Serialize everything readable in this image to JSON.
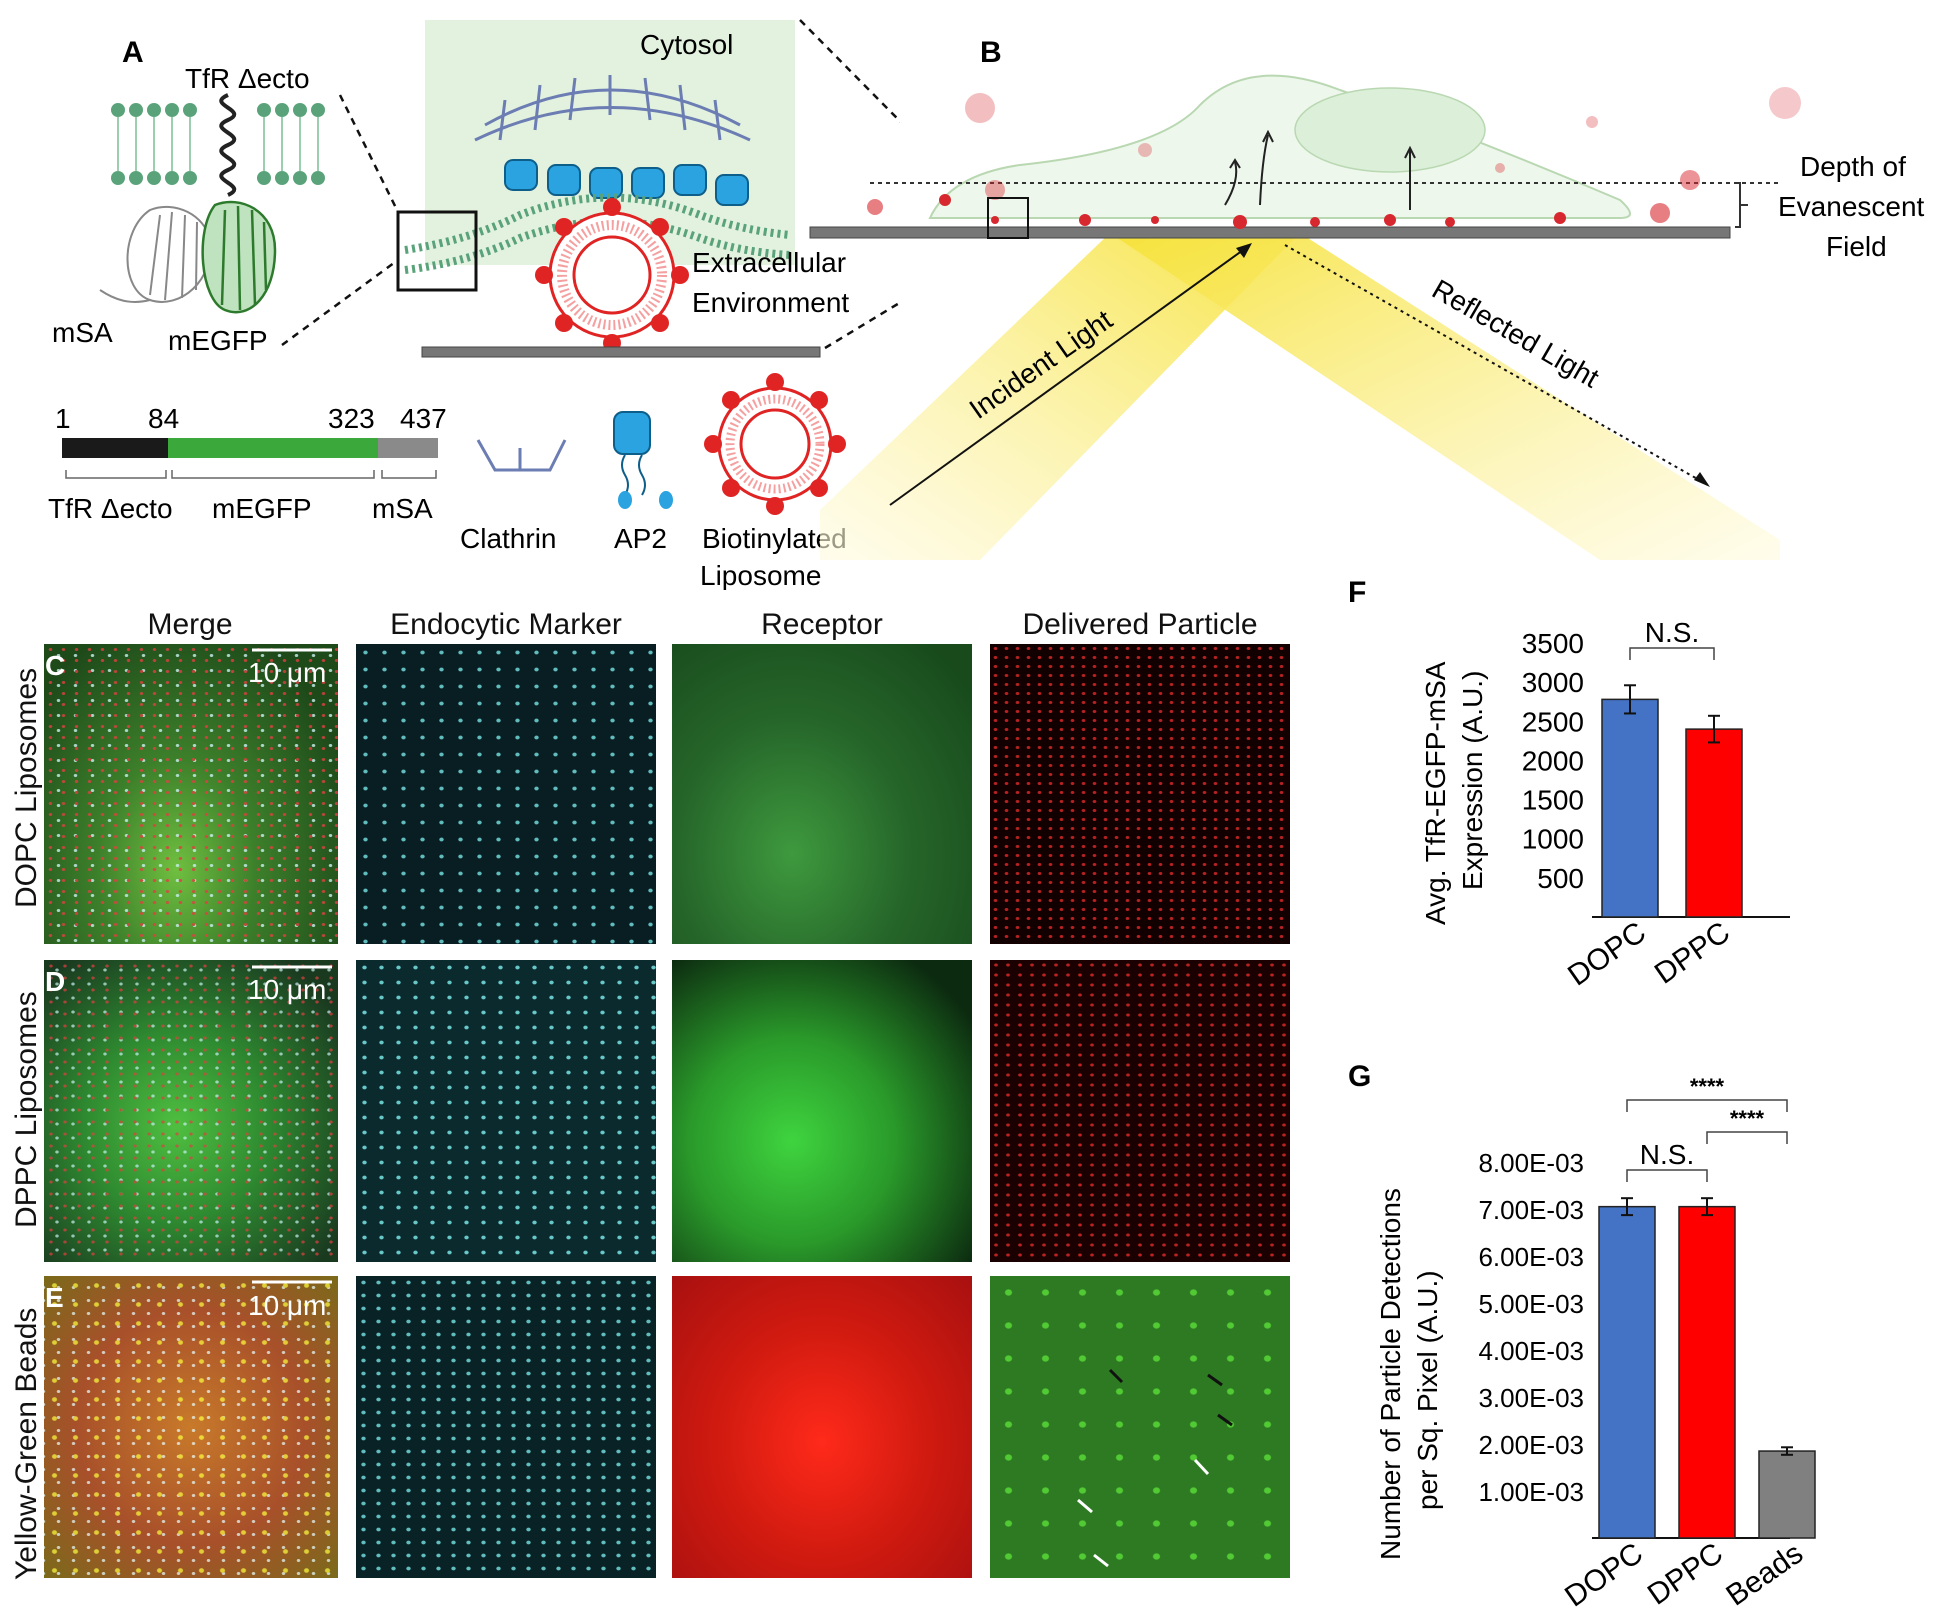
{
  "panel_a": {
    "letter": "A",
    "tfr_label": "TfR Δecto",
    "msa_label": "mSA",
    "megfp_label": "mEGFP",
    "cytosol_label": "Cytosol",
    "extracellular_label_1": "Extracellular",
    "extracellular_label_2": "Environment",
    "construct": {
      "numbers": [
        "1",
        "84",
        "323",
        "437"
      ],
      "segments": [
        "TfR Δecto",
        "mEGFP",
        "mSA"
      ],
      "colors": [
        "#1a1a1a",
        "#3aa83a",
        "#8a8a8a"
      ]
    },
    "legend": {
      "clathrin": "Clathrin",
      "ap2": "AP2",
      "liposome_1": "Biotinylated",
      "liposome_2": "Liposome"
    }
  },
  "panel_b": {
    "letter": "B",
    "depth_1": "Depth of",
    "depth_2": "Evanescent",
    "depth_3": "Field",
    "incident": "Incident Light",
    "reflected": "Reflected Light"
  },
  "micrographs": {
    "columns": [
      "Merge",
      "Endocytic Marker",
      "Receptor",
      "Delivered Particle"
    ],
    "rows": [
      {
        "letter": "C",
        "label": "DOPC Liposomes",
        "scale": "10 μm"
      },
      {
        "letter": "D",
        "label": "DPPC Liposomes",
        "scale": "10 μm"
      },
      {
        "letter": "E",
        "label": "Yellow-Green Beads",
        "scale": "10 μm"
      }
    ]
  },
  "colors": {
    "dopc": "#4472c4",
    "dppc": "#ff0000",
    "beads": "#808080",
    "membrane": "#5aa37a",
    "clathrin": "#5b6fa8",
    "ap2": "#2aa3e0",
    "liposome": "#e02424"
  },
  "chart_data": [
    {
      "panel": "F",
      "type": "bar",
      "categories": [
        "DOPC",
        "DPPC"
      ],
      "values": [
        2780,
        2400
      ],
      "errors": [
        180,
        170
      ],
      "ylabel_1": "Avg. TfR-EGFP-mSA",
      "ylabel_2": "Expression (A.U.)",
      "yticks": [
        "500",
        "1000",
        "1500",
        "2000",
        "2500",
        "3000",
        "3500"
      ],
      "ylim": [
        0,
        3500
      ],
      "significance": [
        {
          "between": [
            "DOPC",
            "DPPC"
          ],
          "label": "N.S."
        }
      ]
    },
    {
      "panel": "G",
      "type": "bar",
      "categories": [
        "DOPC",
        "DPPC",
        "Beads"
      ],
      "values": [
        0.00705,
        0.00705,
        0.00185
      ],
      "errors": [
        0.00018,
        0.00018,
        8e-05
      ],
      "ylabel_1": "Number of Particle Detections",
      "ylabel_2": "per Sq. Pixel (A.U.)",
      "yticks": [
        "1.00E-03",
        "2.00E-03",
        "3.00E-03",
        "4.00E-03",
        "5.00E-03",
        "6.00E-03",
        "7.00E-03",
        "8.00E-03"
      ],
      "ylim": [
        0,
        0.008
      ],
      "significance": [
        {
          "between": [
            "DOPC",
            "DPPC"
          ],
          "label": "N.S."
        },
        {
          "between": [
            "DPPC",
            "Beads"
          ],
          "label": "****"
        },
        {
          "between": [
            "DOPC",
            "Beads"
          ],
          "label": "****"
        }
      ]
    }
  ]
}
